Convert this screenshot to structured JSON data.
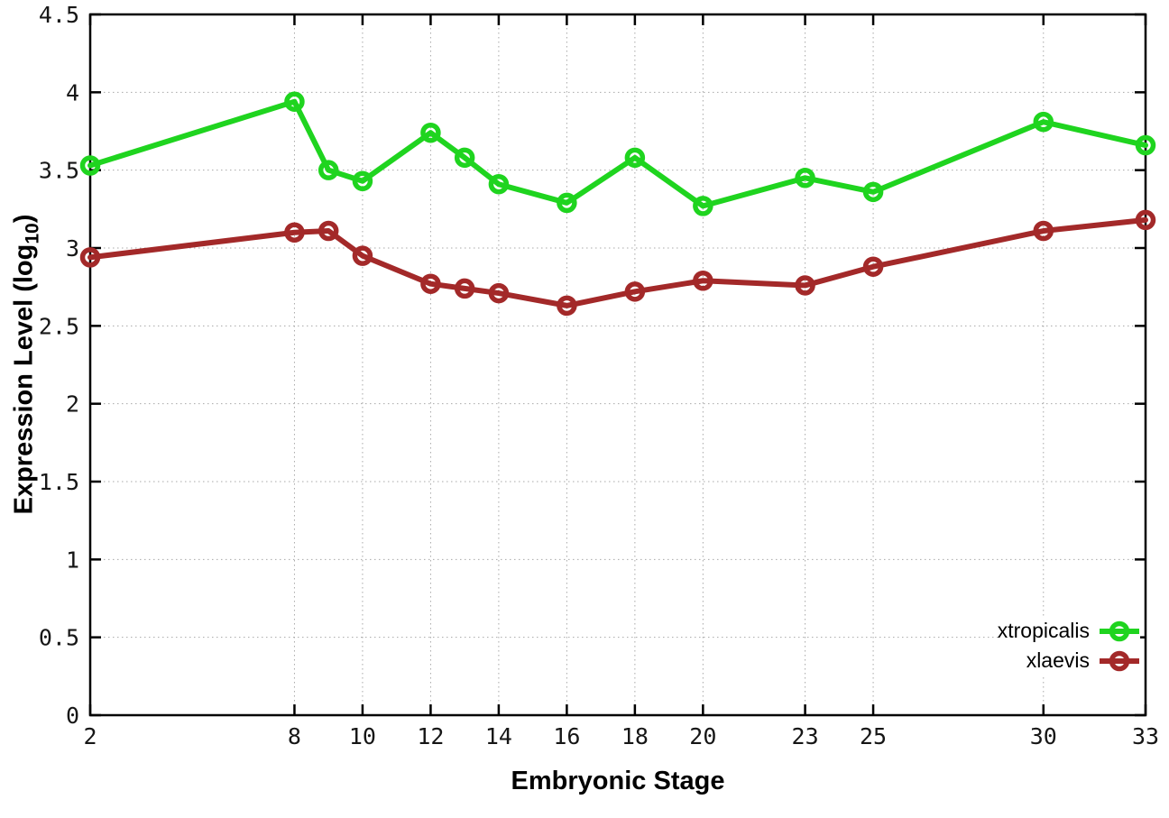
{
  "chart_data": {
    "type": "line",
    "title": "",
    "xlabel": "Embryonic Stage",
    "ylabel": "Expression Level (log10)",
    "ylabel_display": {
      "pre": "Expression Level (log",
      "sub": "10",
      "post": ")"
    },
    "x": [
      2,
      8,
      9,
      10,
      12,
      13,
      14,
      16,
      18,
      20,
      23,
      25,
      30,
      33
    ],
    "series": [
      {
        "name": "xtropicalis",
        "color": "#1fd41f",
        "values": [
          3.53,
          3.94,
          3.5,
          3.43,
          3.74,
          3.58,
          3.41,
          3.29,
          3.58,
          3.27,
          3.45,
          3.36,
          3.81,
          3.66
        ]
      },
      {
        "name": "xlaevis",
        "color": "#a32929",
        "values": [
          2.94,
          3.1,
          3.11,
          2.95,
          2.77,
          2.74,
          2.71,
          2.63,
          2.72,
          2.79,
          2.76,
          2.88,
          3.11,
          3.18
        ]
      }
    ],
    "xticks": [
      2,
      8,
      10,
      12,
      14,
      16,
      18,
      20,
      23,
      25,
      30,
      33
    ],
    "xtick_labels": [
      "2",
      "8",
      "10",
      "12",
      "14",
      "16",
      "18",
      "20",
      "23",
      "25",
      "30",
      "33"
    ],
    "yticks": [
      0,
      0.5,
      1,
      1.5,
      2,
      2.5,
      3,
      3.5,
      4,
      4.5
    ],
    "ytick_labels": [
      "0",
      "0.5",
      "1",
      "1.5",
      "2",
      "2.5",
      "3",
      "3.5",
      "4",
      "4.5"
    ],
    "xlim": [
      2,
      33
    ],
    "ylim": [
      0,
      4.5
    ],
    "grid": true,
    "grid_style": "dotted",
    "grid_color": "#a8a8a8",
    "border_color": "#000000",
    "marker": "open-circle",
    "legend_position": "bottom-right-inside"
  }
}
